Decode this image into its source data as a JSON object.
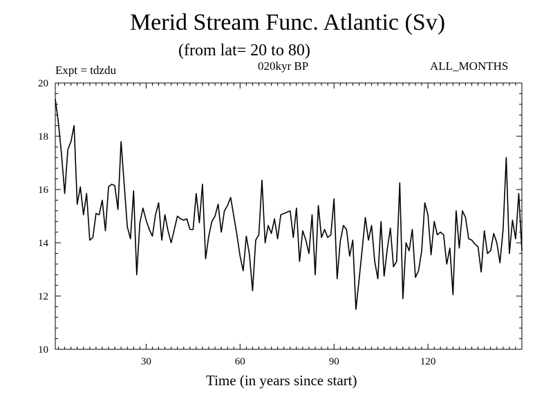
{
  "chart_data": {
    "type": "line",
    "title": "Merid Stream Func. Atlantic (Sv)",
    "subtitle": "(from lat= 20 to 80)",
    "annotations": {
      "experiment": "Expt = tdzdu",
      "period": "020kyr BP",
      "months": "ALL_MONTHS"
    },
    "xlabel": "Time (in years since start)",
    "ylabel": "",
    "xlim": [
      1,
      150
    ],
    "ylim": [
      10,
      20
    ],
    "xticks": [
      30,
      60,
      90,
      120
    ],
    "yticks": [
      10,
      12,
      14,
      16,
      18,
      20
    ],
    "series": [
      {
        "name": "Merid Stream Func. Atlantic",
        "x": [
          1,
          2,
          3,
          4,
          5,
          6,
          7,
          8,
          9,
          10,
          11,
          12,
          13,
          14,
          15,
          16,
          17,
          18,
          19,
          20,
          21,
          22,
          23,
          24,
          25,
          26,
          27,
          28,
          29,
          30,
          31,
          32,
          33,
          34,
          35,
          36,
          37,
          38,
          39,
          40,
          41,
          42,
          43,
          44,
          45,
          46,
          47,
          48,
          49,
          50,
          51,
          52,
          53,
          54,
          55,
          56,
          57,
          58,
          59,
          60,
          61,
          62,
          63,
          64,
          65,
          66,
          67,
          68,
          69,
          70,
          71,
          72,
          73,
          74,
          75,
          76,
          77,
          78,
          79,
          80,
          81,
          82,
          83,
          84,
          85,
          86,
          87,
          88,
          89,
          90,
          91,
          92,
          93,
          94,
          95,
          96,
          97,
          98,
          99,
          100,
          101,
          102,
          103,
          104,
          105,
          106,
          107,
          108,
          109,
          110,
          111,
          112,
          113,
          114,
          115,
          116,
          117,
          118,
          119,
          120,
          121,
          122,
          123,
          124,
          125,
          126,
          127,
          128,
          129,
          130,
          131,
          132,
          133,
          134,
          135,
          136,
          137,
          138,
          139,
          140,
          141,
          142,
          143,
          144,
          145,
          146,
          147,
          148,
          149,
          150
        ],
        "values": [
          19.4,
          18.5,
          17.3,
          15.85,
          17.5,
          17.8,
          18.4,
          15.45,
          16.1,
          15.05,
          15.85,
          14.1,
          14.2,
          15.1,
          15.05,
          15.6,
          14.45,
          16.1,
          16.2,
          16.15,
          15.25,
          17.8,
          16.2,
          14.6,
          14.15,
          15.95,
          12.8,
          14.75,
          15.3,
          14.85,
          14.5,
          14.25,
          15.05,
          15.5,
          14.1,
          15.05,
          14.45,
          14.0,
          14.5,
          15.0,
          14.9,
          14.85,
          14.9,
          14.5,
          14.5,
          15.85,
          14.75,
          16.2,
          13.4,
          14.25,
          14.8,
          15.0,
          15.45,
          14.4,
          15.2,
          15.4,
          15.7,
          15.0,
          14.3,
          13.5,
          12.95,
          14.25,
          13.55,
          12.2,
          14.1,
          14.3,
          16.35,
          14.0,
          14.65,
          14.35,
          14.9,
          14.15,
          15.05,
          15.1,
          15.15,
          15.2,
          14.2,
          15.3,
          13.3,
          14.45,
          14.1,
          13.6,
          15.05,
          12.8,
          15.4,
          14.2,
          14.5,
          14.2,
          14.3,
          15.65,
          12.65,
          14.05,
          14.65,
          14.5,
          13.5,
          14.1,
          11.5,
          12.6,
          13.75,
          14.95,
          14.1,
          14.65,
          13.3,
          12.65,
          14.8,
          12.75,
          13.75,
          14.55,
          13.1,
          13.3,
          16.25,
          11.9,
          14.0,
          13.7,
          14.5,
          12.7,
          12.95,
          13.7,
          15.5,
          15.05,
          13.55,
          14.8,
          14.3,
          14.4,
          14.3,
          13.2,
          13.8,
          12.05,
          15.2,
          13.8,
          15.2,
          14.95,
          14.15,
          14.1,
          13.95,
          13.85,
          12.9,
          14.45,
          13.6,
          13.7,
          14.35,
          14.0,
          13.25,
          14.5,
          17.2,
          13.6,
          14.85,
          14.15,
          15.85,
          13.7
        ]
      }
    ]
  }
}
